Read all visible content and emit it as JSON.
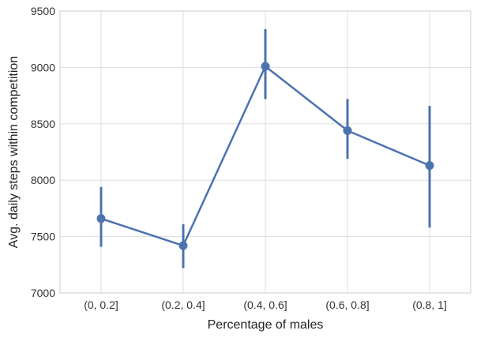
{
  "chart_data": {
    "type": "line",
    "title": "",
    "xlabel": "Percentage of males",
    "ylabel": "Avg. daily steps within competition",
    "categories": [
      "(0, 0.2]",
      "(0.2, 0.4]",
      "(0.4, 0.6]",
      "(0.6, 0.8]",
      "(0.8, 1]"
    ],
    "series": [
      {
        "values": [
          7660,
          7420,
          9010,
          8440,
          8130
        ],
        "error_low": [
          7410,
          7220,
          8720,
          8190,
          7580
        ],
        "error_high": [
          7940,
          7610,
          9340,
          8720,
          8660
        ]
      }
    ],
    "ylim": [
      7000,
      9500
    ],
    "yticks": [
      7000,
      7500,
      8000,
      8500,
      9000,
      9500
    ],
    "grid": true,
    "colors": {
      "series": "#4c72b0",
      "grid": "#dddddd",
      "frame": "#cccccc"
    }
  }
}
